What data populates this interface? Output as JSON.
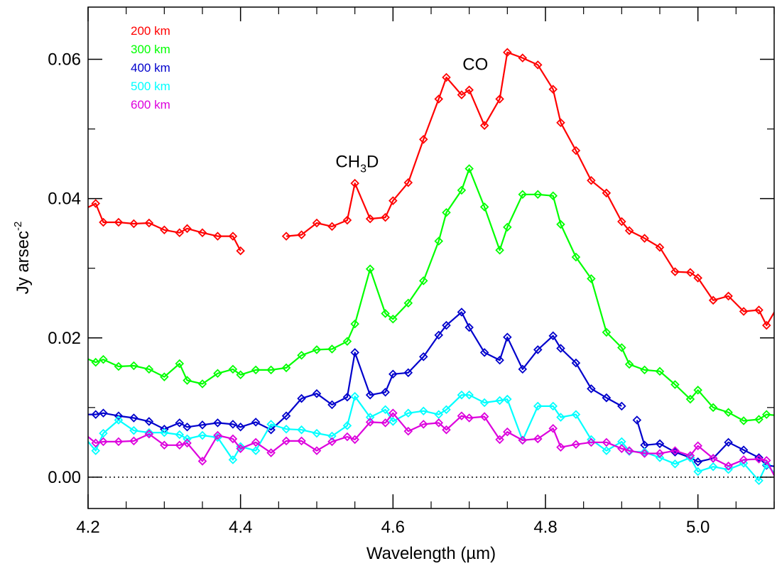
{
  "chart_data": {
    "type": "line",
    "xlabel": "Wavelength (µm)",
    "ylabel": "Jy arsec",
    "ylabel_sup": "-2",
    "xlim": [
      4.2,
      5.1
    ],
    "ylim": [
      -0.0045,
      0.0675
    ],
    "xticks": [
      4.2,
      4.4,
      4.6,
      4.8,
      5.0
    ],
    "xtick_labels": [
      "4.2",
      "4.4",
      "4.6",
      "4.8",
      "5.0"
    ],
    "yticks": [
      0.0,
      0.02,
      0.04,
      0.06
    ],
    "ytick_labels": [
      "0.00",
      "0.02",
      "0.04",
      "0.06"
    ],
    "legend_position": "top-left",
    "zero_line": "dotted",
    "annotations": [
      {
        "text": "CH",
        "sub": "3",
        "suffix": "D",
        "x": 4.553,
        "y": 0.0445
      },
      {
        "text": "CO",
        "x": 4.708,
        "y": 0.0585
      }
    ],
    "series": [
      {
        "name": "200 km",
        "color": "#ff0000",
        "segments": [
          {
            "x": [
              4.19,
              4.21,
              4.22,
              4.24,
              4.26,
              4.28,
              4.3,
              4.32,
              4.33,
              4.35,
              4.37,
              4.39,
              4.4
            ],
            "y": [
              0.0382,
              0.0393,
              0.0366,
              0.0366,
              0.0364,
              0.0365,
              0.0355,
              0.0351,
              0.0357,
              0.0351,
              0.0346,
              0.0346,
              0.0325
            ]
          },
          {
            "x": [
              4.46,
              4.48,
              4.5,
              4.52,
              4.54,
              4.55,
              4.57,
              4.59,
              4.6,
              4.62,
              4.64,
              4.66,
              4.67,
              4.69,
              4.7,
              4.72,
              4.74,
              4.75,
              4.77,
              4.79,
              4.81,
              4.82,
              4.84,
              4.86,
              4.88,
              4.9,
              4.91,
              4.93,
              4.95,
              4.97,
              4.99,
              5.0,
              5.02,
              5.04,
              5.06,
              5.08,
              5.09,
              5.11
            ],
            "y": [
              0.0346,
              0.0348,
              0.0365,
              0.036,
              0.0369,
              0.0422,
              0.0371,
              0.0373,
              0.0397,
              0.0423,
              0.0485,
              0.0543,
              0.0574,
              0.0549,
              0.0556,
              0.0505,
              0.0543,
              0.061,
              0.0602,
              0.0592,
              0.0557,
              0.0509,
              0.0469,
              0.0426,
              0.0408,
              0.0367,
              0.0354,
              0.0343,
              0.033,
              0.0295,
              0.0294,
              0.0286,
              0.0254,
              0.026,
              0.0238,
              0.024,
              0.0218,
              0.0255
            ]
          }
        ]
      },
      {
        "name": "300 km",
        "color": "#00ff00",
        "segments": [
          {
            "x": [
              4.19,
              4.21,
              4.22,
              4.24,
              4.26,
              4.28,
              4.3,
              4.32,
              4.33,
              4.35,
              4.37,
              4.39,
              4.4,
              4.42,
              4.44,
              4.46,
              4.48,
              4.5,
              4.52,
              4.54,
              4.55,
              4.57,
              4.59,
              4.6,
              4.62,
              4.64,
              4.66,
              4.67,
              4.69,
              4.7,
              4.72,
              4.74,
              4.75,
              4.77,
              4.79,
              4.81,
              4.82,
              4.84,
              4.86,
              4.88,
              4.9,
              4.91,
              4.93,
              4.95,
              4.97,
              4.99,
              5.0,
              5.02,
              5.04,
              5.06,
              5.08,
              5.09,
              5.11
            ],
            "y": [
              0.0174,
              0.0165,
              0.0169,
              0.0159,
              0.016,
              0.0155,
              0.0144,
              0.0163,
              0.0139,
              0.0134,
              0.0149,
              0.0155,
              0.0147,
              0.0154,
              0.0154,
              0.0157,
              0.0175,
              0.0183,
              0.0184,
              0.0195,
              0.022,
              0.0299,
              0.0235,
              0.0227,
              0.025,
              0.0282,
              0.0339,
              0.038,
              0.0412,
              0.0443,
              0.0388,
              0.0326,
              0.0359,
              0.0406,
              0.0406,
              0.0404,
              0.0363,
              0.0316,
              0.0285,
              0.0208,
              0.0186,
              0.0162,
              0.0154,
              0.0152,
              0.0133,
              0.0112,
              0.0125,
              0.01,
              0.0093,
              0.0081,
              0.0083,
              0.009,
              0.0088
            ]
          }
        ]
      },
      {
        "name": "400 km",
        "color": "#0000cc",
        "segments": [
          {
            "x": [
              4.19,
              4.21,
              4.22,
              4.24,
              4.26,
              4.28,
              4.3,
              4.32,
              4.33,
              4.35,
              4.37,
              4.39,
              4.4,
              4.42,
              4.44,
              4.46,
              4.48,
              4.5,
              4.52,
              4.54,
              4.55,
              4.57,
              4.59,
              4.6,
              4.62,
              4.64,
              4.66,
              4.67,
              4.69,
              4.7,
              4.72,
              4.74,
              4.75,
              4.77,
              4.79,
              4.81,
              4.82,
              4.84,
              4.86,
              4.88
            ],
            "y": [
              0.009,
              0.009,
              0.0092,
              0.0088,
              0.0085,
              0.008,
              0.0069,
              0.0078,
              0.0072,
              0.0075,
              0.0078,
              0.0076,
              0.0072,
              0.0079,
              0.0068,
              0.0088,
              0.0113,
              0.012,
              0.0104,
              0.0115,
              0.0179,
              0.0118,
              0.0122,
              0.0148,
              0.015,
              0.0173,
              0.0204,
              0.0218,
              0.0237,
              0.0215,
              0.0179,
              0.0168,
              0.0201,
              0.0155,
              0.0183,
              0.0203,
              0.0185,
              0.0164,
              0.0127,
              0.0114
            ]
          },
          {
            "x": [
              4.88,
              4.9
            ],
            "y": [
              0.0114,
              0.0102
            ]
          },
          {
            "x": [
              4.92,
              4.93,
              4.95,
              4.97,
              4.99,
              5.0,
              5.02,
              5.04,
              5.06,
              5.08,
              5.09,
              5.11
            ],
            "y": [
              0.0082,
              0.0046,
              0.0048,
              0.0036,
              0.0028,
              0.0022,
              0.0027,
              0.005,
              0.0039,
              0.0028,
              0.0017,
              0.0014
            ]
          }
        ]
      },
      {
        "name": "500 km",
        "color": "#00ffff",
        "segments": [
          {
            "x": [
              4.19,
              4.21,
              4.22,
              4.24,
              4.26,
              4.28,
              4.3,
              4.32,
              4.33,
              4.35,
              4.37,
              4.39,
              4.4,
              4.42,
              4.44,
              4.46,
              4.48,
              4.5,
              4.52,
              4.54,
              4.55,
              4.57,
              4.59,
              4.6,
              4.62,
              4.64,
              4.66,
              4.67,
              4.69,
              4.7,
              4.72,
              4.74,
              4.75,
              4.77,
              4.79,
              4.81,
              4.82,
              4.84,
              4.86,
              4.88,
              4.9,
              4.91,
              4.93,
              4.95,
              4.97,
              4.99,
              5.0,
              5.02,
              5.04,
              5.06,
              5.08,
              5.09,
              5.11
            ],
            "y": [
              0.0064,
              0.0038,
              0.0063,
              0.0082,
              0.0067,
              0.0064,
              0.0064,
              0.0061,
              0.0055,
              0.006,
              0.0057,
              0.0025,
              0.0044,
              0.0038,
              0.0076,
              0.0069,
              0.0068,
              0.0063,
              0.0059,
              0.0074,
              0.0116,
              0.0086,
              0.0097,
              0.008,
              0.0092,
              0.0095,
              0.009,
              0.0097,
              0.0118,
              0.0118,
              0.0107,
              0.011,
              0.0112,
              0.0053,
              0.0102,
              0.0102,
              0.0086,
              0.009,
              0.0054,
              0.0038,
              0.0051,
              0.0037,
              0.0036,
              0.0028,
              0.0019,
              0.0028,
              0.0008,
              0.0015,
              0.0011,
              0.002,
              -0.0005,
              0.0018,
              -0.0005
            ]
          }
        ]
      },
      {
        "name": "600 km",
        "color": "#dd00dd",
        "segments": [
          {
            "x": [
              4.19,
              4.21,
              4.22,
              4.24,
              4.26,
              4.28,
              4.3,
              4.32,
              4.33,
              4.35,
              4.37,
              4.39,
              4.4,
              4.42,
              4.44,
              4.46,
              4.48,
              4.5,
              4.52,
              4.54,
              4.55,
              4.57,
              4.59,
              4.6,
              4.62,
              4.64,
              4.66,
              4.67,
              4.69,
              4.7,
              4.72,
              4.74,
              4.75,
              4.77,
              4.79,
              4.81,
              4.82,
              4.84,
              4.86,
              4.88,
              4.9,
              4.91,
              4.93,
              4.95,
              4.97,
              4.99,
              5.0,
              5.02,
              5.04,
              5.06,
              5.08,
              5.09,
              5.11
            ],
            "y": [
              0.0067,
              0.0049,
              0.0051,
              0.0051,
              0.0052,
              0.0062,
              0.0046,
              0.0046,
              0.0049,
              0.0023,
              0.006,
              0.0055,
              0.0041,
              0.005,
              0.0035,
              0.0052,
              0.0052,
              0.0038,
              0.0051,
              0.0058,
              0.0054,
              0.0079,
              0.0078,
              0.0092,
              0.0066,
              0.0076,
              0.0078,
              0.0068,
              0.0088,
              0.0085,
              0.0087,
              0.0054,
              0.0065,
              0.0053,
              0.0055,
              0.007,
              0.0043,
              0.0047,
              0.005,
              0.005,
              0.0041,
              0.0038,
              0.0034,
              0.0034,
              0.0038,
              0.0031,
              0.0045,
              0.0027,
              0.0016,
              0.0025,
              0.0026,
              0.0024,
              -0.0019
            ]
          }
        ]
      }
    ]
  }
}
